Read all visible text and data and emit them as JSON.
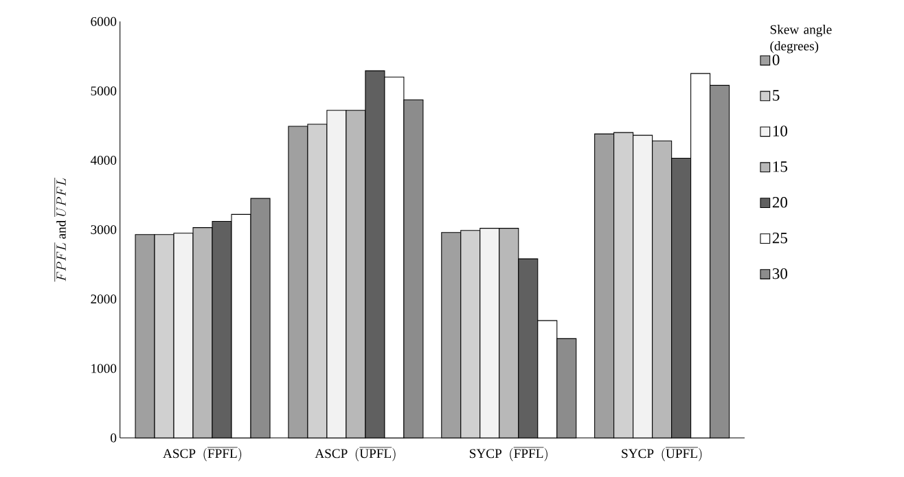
{
  "chart_data": {
    "type": "bar",
    "ylabel": "\\overline{FPFL}\\text{ and }\\overline{UPFL}",
    "legend_title": "Skew angle (degrees)",
    "categories": [
      "\\mathrm{ASCP}\\ \\ (\\overline{\\mathrm{FPFL}})",
      "\\mathrm{ASCP}\\ \\ (\\overline{\\mathrm{UPFL}})",
      "\\mathrm{SYCP}\\ \\ (\\overline{\\mathrm{FPFL}})",
      "\\mathrm{SYCP}\\ \\ (\\overline{\\mathrm{UPFL}})"
    ],
    "series": [
      {
        "name": "0",
        "color": "#a0a0a0",
        "values": [
          2930,
          4490,
          2960,
          4380
        ]
      },
      {
        "name": "5",
        "color": "#d0d0d0",
        "values": [
          2930,
          4520,
          2990,
          4400
        ]
      },
      {
        "name": "10",
        "color": "#f2f2f2",
        "values": [
          2950,
          4720,
          3020,
          4360
        ]
      },
      {
        "name": "15",
        "color": "#b8b8b8",
        "values": [
          3030,
          4720,
          3020,
          4280
        ]
      },
      {
        "name": "20",
        "color": "#606060",
        "values": [
          3120,
          5290,
          2580,
          4030
        ]
      },
      {
        "name": "25",
        "color": "#ffffff",
        "values": [
          3220,
          5200,
          1690,
          5250
        ]
      },
      {
        "name": "30",
        "color": "#8c8c8c",
        "values": [
          3450,
          4870,
          1430,
          5080
        ]
      }
    ],
    "ylim": [
      0,
      6000
    ],
    "yticks": [
      0,
      1000,
      2000,
      3000,
      4000,
      5000,
      6000
    ],
    "grid": false,
    "legend": "right"
  }
}
